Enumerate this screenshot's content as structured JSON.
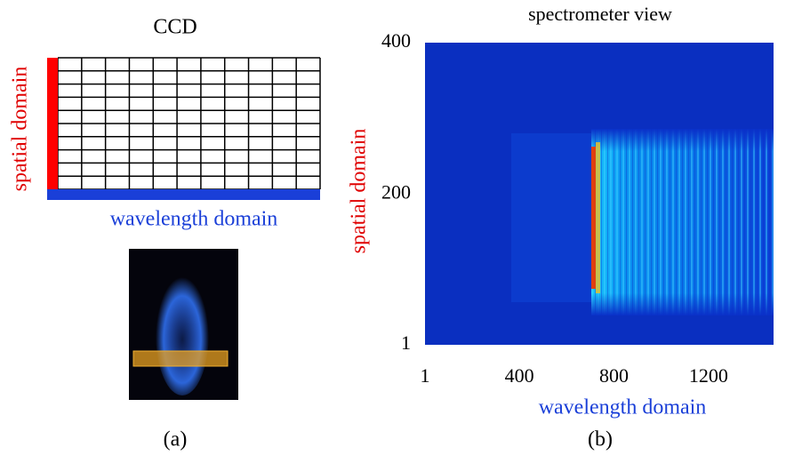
{
  "panel_a": {
    "title": "CCD",
    "y_label": "spatial domain",
    "x_label": "wavelength domain",
    "caption": "(a)"
  },
  "panel_b": {
    "title": "spectrometer view",
    "y_label": "spatial domain",
    "x_label": "wavelength domain",
    "caption": "(b)",
    "ylim": [
      1,
      400
    ],
    "yticks": [
      1,
      200,
      400
    ],
    "xlim": [
      1,
      1475
    ],
    "xticks": [
      1,
      400,
      800,
      1200
    ]
  }
}
